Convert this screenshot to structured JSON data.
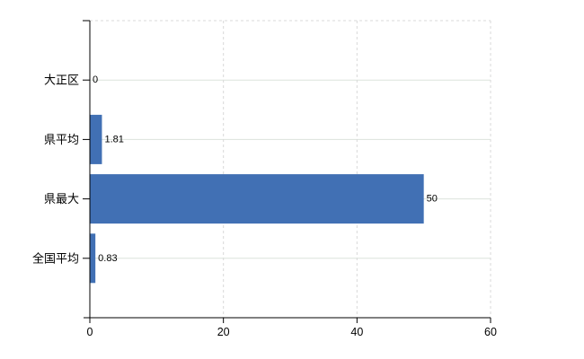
{
  "chart_data": {
    "type": "bar",
    "orientation": "horizontal",
    "title": "",
    "xlabel": "",
    "ylabel": "",
    "categories": [
      "大正区",
      "県平均",
      "県最大",
      "全国平均"
    ],
    "values": [
      0,
      1.81,
      50,
      0.83
    ],
    "value_labels": [
      "0",
      "1.81",
      "50",
      "0.83"
    ],
    "xlim": [
      0,
      60
    ],
    "xticks": [
      0,
      20,
      40,
      60
    ],
    "xtick_labels": [
      "0",
      "20",
      "40",
      "60"
    ],
    "grid": "horizontal solid at each category, vertical dashed at 20/40/60, dashed top border",
    "legend": "none",
    "colors": {
      "bar": "#4170b4",
      "axis": "#000000",
      "grid_solid": "#dce3dc",
      "grid_dashed": "#d9d9d9",
      "text": "#000000",
      "background": "#ffffff"
    }
  }
}
